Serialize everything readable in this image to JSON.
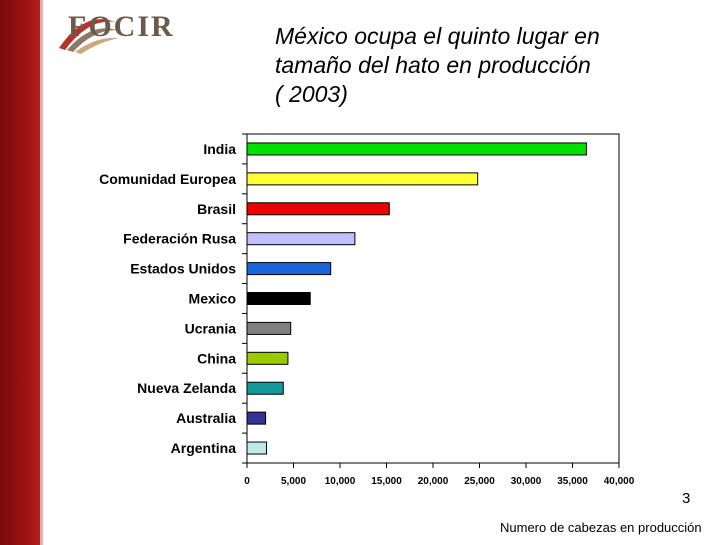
{
  "slide": {
    "logo_text": "FOCIR",
    "title_lines": [
      "México ocupa el quinto lugar en",
      "tamaño del hato en producción",
      "( 2003)"
    ],
    "slide_number": "3",
    "footnote": "Numero de cabezas en producción"
  },
  "chart_data": {
    "type": "bar",
    "orientation": "horizontal",
    "categories": [
      "India",
      "Comunidad Europea",
      "Brasil",
      "Federación Rusa",
      "Estados Unidos",
      "Mexico",
      "Ucrania",
      "China",
      "Nueva Zelanda",
      "Australia",
      "Argentina"
    ],
    "values": [
      36500,
      24800,
      15300,
      11600,
      9000,
      6800,
      4700,
      4400,
      3900,
      2000,
      2100
    ],
    "colors": [
      "#00e000",
      "#ffff33",
      "#ee0000",
      "#c0c0ff",
      "#1a66d9",
      "#000000",
      "#808080",
      "#99cc00",
      "#139999",
      "#333399",
      "#bfe8e8"
    ],
    "xlim": [
      0,
      40000
    ],
    "xticks": [
      "0",
      "5,000",
      "10,000",
      "15,000",
      "20,000",
      "25,000",
      "30,000",
      "35,000",
      "40,000"
    ],
    "grid": false,
    "title": "",
    "xlabel": "",
    "ylabel": ""
  }
}
